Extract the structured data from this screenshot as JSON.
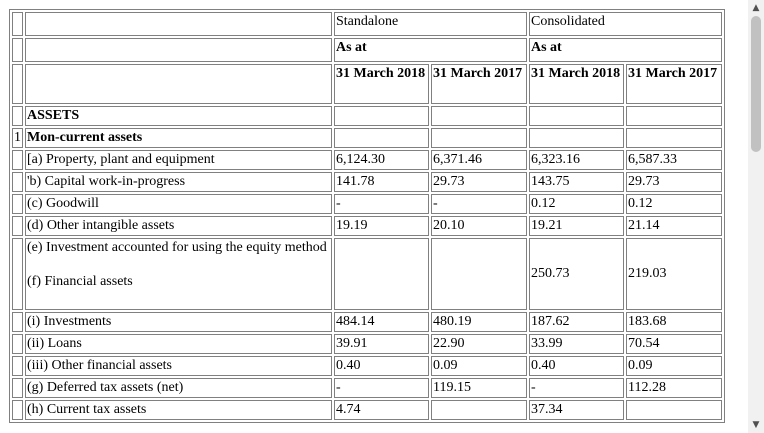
{
  "header": {
    "standalone": "Standalone",
    "consolidated": "Consolidated",
    "as_at": "As at",
    "dates": [
      "31 March 2018",
      "31 March 2017",
      "31 March 2018",
      "31 March 2017"
    ]
  },
  "assets_label": "ASSETS",
  "section": {
    "num": "1",
    "label": "Mon-current assets"
  },
  "rows": [
    {
      "label": "[a) Property, plant and equipment",
      "v": [
        "6,124.30",
        "6,371.46",
        "6,323.16",
        "6,587.33"
      ]
    },
    {
      "label": "'b) Capital work-in-progress",
      "v": [
        "141.78",
        "29.73",
        "143.75",
        "29.73"
      ]
    },
    {
      "label": "(c) Goodwill",
      "v": [
        "-",
        "-",
        "0.12",
        "0.12"
      ]
    },
    {
      "label": "(d) Other intangible assets",
      "v": [
        "19.19",
        "20.10",
        "19.21",
        "21.14"
      ]
    },
    {
      "label": "(e)   Investment accounted for using the equity method",
      "label2": "(f)   Financial assets",
      "v": [
        "",
        "",
        "250.73",
        "219.03"
      ]
    },
    {
      "label": "(i) Investments",
      "v": [
        "484.14",
        "480.19",
        "187.62",
        "183.68"
      ]
    },
    {
      "label": "(ii) Loans",
      "v": [
        "39.91",
        "22.90",
        "33.99",
        "70.54"
      ]
    },
    {
      "label": "(iii) Other financial assets",
      "v": [
        "0.40",
        "0.09",
        "0.40",
        "0.09"
      ]
    },
    {
      "label": "(g) Deferred tax assets (net)",
      "v": [
        "-",
        "119.15",
        "-",
        "112.28"
      ]
    },
    {
      "label": "(h) Current tax assets",
      "v": [
        "4.74",
        "",
        "37.34",
        ""
      ]
    }
  ],
  "scrollbar": {
    "up": "▲",
    "down": "▼"
  }
}
